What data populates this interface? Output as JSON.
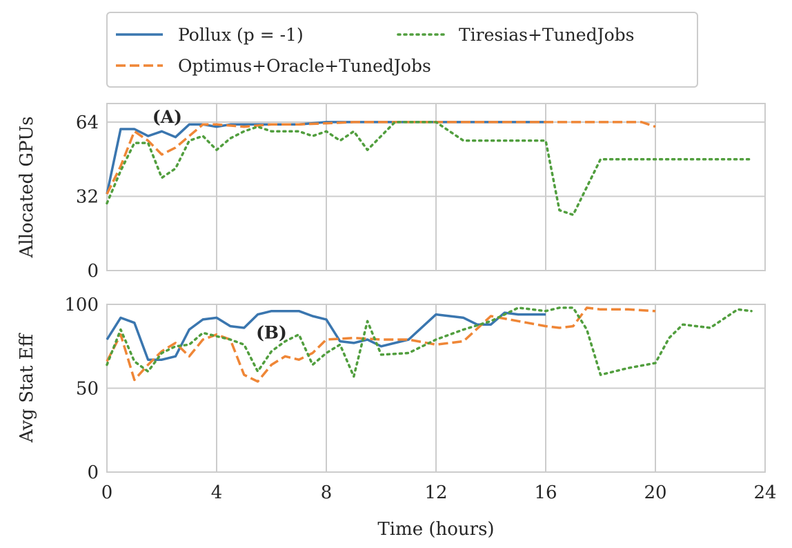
{
  "colors": {
    "pollux": "#3a76af",
    "optimus": "#ef8636",
    "tiresias": "#519e3e"
  },
  "chart_data": [
    {
      "type": "line",
      "ylabel": "Allocated GPUs",
      "annotation": "(A)",
      "annotation_pos": [
        2.2,
        66
      ],
      "xlim": [
        0,
        24
      ],
      "ylim": [
        0,
        72
      ],
      "xticks": [
        "0",
        "4",
        "8",
        "12",
        "16",
        "20",
        "24"
      ],
      "xtick_values": [
        0,
        4,
        8,
        12,
        16,
        20,
        24
      ],
      "yticks": [
        "0",
        "32",
        "64"
      ],
      "ytick_values": [
        0,
        32,
        64
      ],
      "grid": true,
      "series": [
        {
          "name": "Pollux (p = -1)",
          "style": "solid",
          "color": "pollux",
          "x": [
            0,
            0.5,
            1,
            1.5,
            2,
            2.5,
            3,
            3.5,
            4,
            4.5,
            5,
            5.5,
            6,
            6.5,
            7,
            7.5,
            8,
            9,
            10,
            11,
            12,
            13,
            14,
            15,
            16
          ],
          "y": [
            33,
            61,
            61,
            58,
            60,
            57.5,
            63,
            63,
            62,
            63,
            63,
            63,
            63,
            63,
            63,
            63.5,
            64,
            64,
            64,
            64,
            64,
            64,
            64,
            64,
            64
          ]
        },
        {
          "name": "Optimus+Oracle+TunedJobs",
          "style": "dashed",
          "color": "optimus",
          "x": [
            0,
            0.5,
            1,
            1.5,
            2,
            2.5,
            3,
            3.5,
            4,
            5,
            6,
            7,
            8,
            9,
            10,
            11,
            12,
            13,
            14,
            15,
            16,
            17,
            18,
            19,
            19.5,
            20
          ],
          "y": [
            33,
            45,
            60,
            56,
            50,
            53,
            58,
            63,
            63,
            62,
            63,
            63,
            63.5,
            64,
            64,
            64,
            64,
            64,
            64,
            64,
            64,
            64,
            64,
            64,
            64,
            62
          ]
        },
        {
          "name": "Tiresias+TunedJobs",
          "style": "dotted",
          "color": "tiresias",
          "x": [
            0,
            0.5,
            1,
            1.5,
            2,
            2.5,
            3,
            3.5,
            4,
            4.5,
            5,
            5.5,
            6,
            6.5,
            7,
            7.5,
            8,
            8.5,
            9,
            9.5,
            10,
            10.5,
            11,
            11.5,
            12,
            13,
            14,
            15,
            16,
            16.5,
            17,
            17.5,
            18,
            19,
            20,
            21,
            22,
            23,
            23.5
          ],
          "y": [
            29,
            43,
            55,
            55,
            40,
            44,
            56,
            58,
            52,
            57,
            60,
            62,
            60,
            60,
            60,
            58,
            60,
            56,
            60,
            52,
            58,
            64,
            64,
            64,
            64,
            56,
            56,
            56,
            56,
            26,
            24,
            36,
            48,
            48,
            48,
            48,
            48,
            48,
            48
          ]
        }
      ]
    },
    {
      "type": "line",
      "ylabel": "Avg Stat Eff",
      "xlabel": "Time (hours)",
      "annotation": "(B)",
      "annotation_pos": [
        6,
        83
      ],
      "xlim": [
        0,
        24
      ],
      "ylim": [
        0,
        100
      ],
      "xticks": [
        "0",
        "4",
        "8",
        "12",
        "16",
        "20",
        "24"
      ],
      "xtick_values": [
        0,
        4,
        8,
        12,
        16,
        20,
        24
      ],
      "yticks": [
        "0",
        "50",
        "100"
      ],
      "ytick_values": [
        0,
        50,
        100
      ],
      "grid": true,
      "series": [
        {
          "name": "Pollux (p = -1)",
          "style": "solid",
          "color": "pollux",
          "x": [
            0,
            0.5,
            1,
            1.5,
            2,
            2.5,
            3,
            3.5,
            4,
            4.5,
            5,
            5.5,
            6,
            6.5,
            7,
            7.5,
            8,
            8.5,
            9,
            9.5,
            10,
            11,
            12,
            12.5,
            13,
            13.5,
            14,
            14.5,
            15,
            15.5,
            16
          ],
          "y": [
            79,
            92,
            89,
            67,
            67,
            69,
            85,
            91,
            92,
            87,
            86,
            94,
            96,
            96,
            96,
            93,
            91,
            78,
            77,
            79,
            75,
            79,
            94,
            93,
            92,
            88,
            88,
            95,
            94,
            94,
            94
          ]
        },
        {
          "name": "Optimus+Oracle+TunedJobs",
          "style": "dashed",
          "color": "optimus",
          "x": [
            0,
            0.5,
            1,
            1.5,
            2,
            2.5,
            3,
            3.5,
            4,
            4.5,
            5,
            5.5,
            6,
            6.5,
            7,
            7.5,
            8,
            9,
            10,
            11,
            12,
            13,
            14,
            15,
            16,
            16.5,
            17,
            17.5,
            18,
            19,
            20
          ],
          "y": [
            66,
            82,
            55,
            64,
            72,
            77,
            69,
            79,
            82,
            79,
            58,
            54,
            64,
            69,
            67,
            71,
            79,
            80,
            79,
            79,
            76,
            78,
            93,
            90,
            87,
            86,
            87,
            98,
            97,
            97,
            96
          ]
        },
        {
          "name": "Tiresias+TunedJobs",
          "style": "dotted",
          "color": "tiresias",
          "x": [
            0,
            0.5,
            1,
            1.5,
            2,
            2.5,
            3,
            3.5,
            4,
            4.5,
            5,
            5.5,
            6,
            6.5,
            7,
            7.5,
            8,
            8.5,
            9,
            9.5,
            10,
            11,
            12,
            13,
            14,
            15,
            16,
            16.5,
            17,
            17.5,
            18,
            19,
            20,
            20.5,
            21,
            21.5,
            22,
            23,
            23.5
          ],
          "y": [
            64,
            85,
            66,
            60,
            71,
            75,
            76,
            83,
            81,
            79,
            76,
            60,
            72,
            78,
            82,
            64,
            71,
            76,
            57,
            90,
            70,
            71,
            79,
            85,
            90,
            98,
            96,
            98,
            98,
            85,
            58,
            62,
            65,
            80,
            88,
            87,
            86,
            97,
            96
          ]
        }
      ]
    }
  ]
}
